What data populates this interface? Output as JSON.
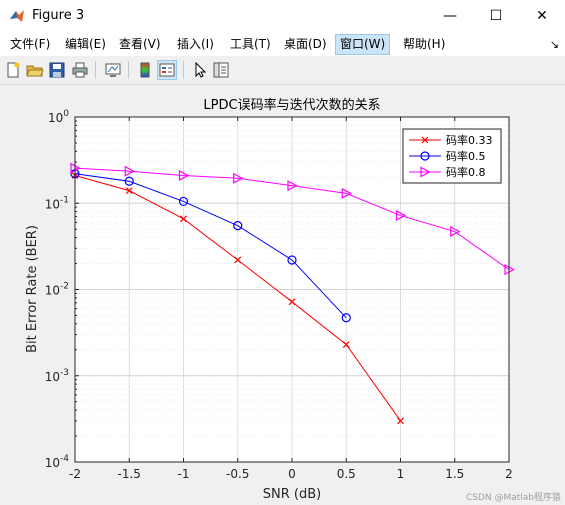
{
  "window": {
    "title": "Figure 3",
    "minimize_glyph": "—",
    "maximize_glyph": "☐",
    "close_glyph": "✕"
  },
  "menu": {
    "items": [
      "文件(F)",
      "编辑(E)",
      "查看(V)",
      "插入(I)",
      "工具(T)",
      "桌面(D)",
      "窗口(W)",
      "帮助(H)"
    ],
    "active_item": "窗口(W)",
    "overflow_glyph": "↘"
  },
  "toolbar": {
    "icons": [
      "new-figure-icon",
      "open-file-icon",
      "save-icon",
      "print-icon",
      "link-plot-icon",
      "colorbar-icon",
      "legend-icon",
      "pointer-icon",
      "property-inspector-icon"
    ],
    "selected_icon": "legend-icon"
  },
  "chart_data": {
    "type": "line",
    "title": "LPDC误码率与迭代次数的关系",
    "xlabel": "SNR (dB)",
    "ylabel": "Bit Error Rate (BER)",
    "xlim": [
      -2,
      2
    ],
    "ylim": [
      0.0001,
      1
    ],
    "yscale": "log",
    "grid": true,
    "minor_grid": true,
    "legend_position": "top-right",
    "x_ticks": [
      "-2",
      "-1.5",
      "-1",
      "-0.5",
      "0",
      "0.5",
      "1",
      "1.5",
      "2"
    ],
    "y_ticks": [
      {
        "base": "10",
        "exp": "0"
      },
      {
        "base": "10",
        "exp": "-1"
      },
      {
        "base": "10",
        "exp": "-2"
      },
      {
        "base": "10",
        "exp": "-3"
      },
      {
        "base": "10",
        "exp": "-4"
      }
    ],
    "series": [
      {
        "name": "码率0.33",
        "color": "#ff0000",
        "marker": "x",
        "x": [
          -2,
          -1.5,
          -1,
          -0.5,
          0,
          0.5,
          1
        ],
        "values": [
          0.21,
          0.14,
          0.066,
          0.022,
          0.0072,
          0.0023,
          0.0003
        ]
      },
      {
        "name": "码率0.5",
        "color": "#0000ff",
        "marker": "o",
        "x": [
          -2,
          -1.5,
          -1,
          -0.5,
          0,
          0.5
        ],
        "values": [
          0.22,
          0.18,
          0.105,
          0.055,
          0.022,
          0.0047
        ]
      },
      {
        "name": "码率0.8",
        "color": "#ff00ff",
        "marker": "triangle-right",
        "x": [
          -2,
          -1.5,
          -1,
          -0.5,
          0,
          0.5,
          1,
          1.5,
          2
        ],
        "values": [
          0.255,
          0.235,
          0.21,
          0.195,
          0.16,
          0.13,
          0.072,
          0.047,
          0.017
        ]
      }
    ]
  },
  "watermark": "CSDN @Matlab程序猿"
}
